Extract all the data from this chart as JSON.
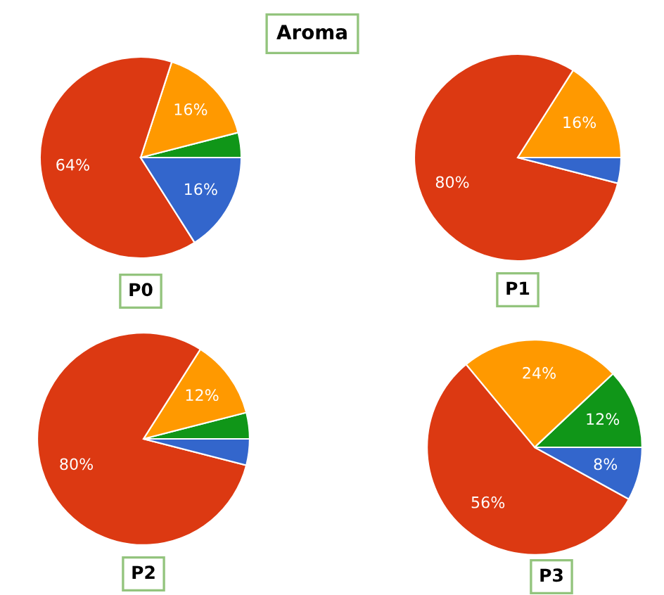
{
  "chart_data": [
    {
      "type": "pie",
      "title": "Aroma",
      "xlabel": "P0",
      "categories": [
        null,
        null,
        null,
        null
      ],
      "values": [
        4,
        16,
        64,
        16
      ],
      "colors": [
        "#109618",
        "#ff9900",
        "#dc3912",
        "#3366cc"
      ],
      "value_labels": [
        null,
        "16%",
        "64%",
        "16%"
      ]
    },
    {
      "type": "pie",
      "xlabel": "P1",
      "categories": [
        null,
        null,
        null
      ],
      "values": [
        16,
        80,
        4
      ],
      "colors": [
        "#ff9900",
        "#dc3912",
        "#3366cc"
      ],
      "value_labels": [
        "16%",
        "80%",
        null
      ]
    },
    {
      "type": "pie",
      "xlabel": "P2",
      "categories": [
        null,
        null,
        null,
        null
      ],
      "values": [
        4,
        12,
        80,
        4
      ],
      "colors": [
        "#109618",
        "#ff9900",
        "#dc3912",
        "#3366cc"
      ],
      "value_labels": [
        null,
        "12%",
        "80%",
        null
      ]
    },
    {
      "type": "pie",
      "xlabel": "P3",
      "categories": [
        null,
        null,
        null,
        null
      ],
      "values": [
        12,
        24,
        56,
        8
      ],
      "colors": [
        "#109618",
        "#ff9900",
        "#dc3912",
        "#3366cc"
      ],
      "value_labels": [
        "12%",
        "24%",
        "56%",
        "8%"
      ]
    }
  ]
}
